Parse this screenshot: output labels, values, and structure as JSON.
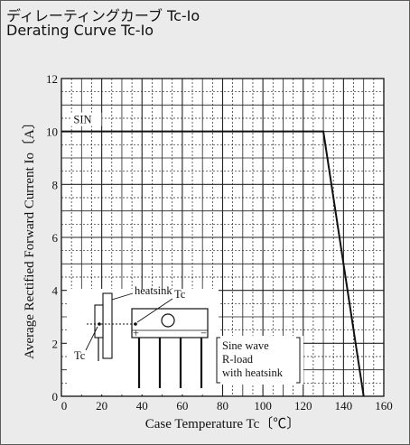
{
  "title_jp": "ディレーティングカーブ Tc-Io",
  "title_en": "Derating Curve Tc-Io",
  "chart_data": {
    "type": "line",
    "xlabel": "Case Temperature  Tc〔℃〕",
    "ylabel": "Average Rectified Forward Current  Io〔A〕",
    "xlim": [
      0,
      160
    ],
    "ylim": [
      0,
      12
    ],
    "x_major_ticks": [
      0,
      20,
      40,
      60,
      80,
      100,
      120,
      140,
      160
    ],
    "y_major_ticks": [
      0,
      2,
      4,
      6,
      8,
      10,
      12
    ],
    "grid": true,
    "series": [
      {
        "name": "SIN",
        "x": [
          0,
          130,
          150
        ],
        "y": [
          10,
          10,
          0
        ]
      }
    ],
    "annotations": {
      "heatsink": "heatsink",
      "tc_top": "Tc",
      "tc_left": "Tc",
      "conditions": [
        "Sine wave",
        "R-load",
        "with heatsink"
      ]
    }
  }
}
